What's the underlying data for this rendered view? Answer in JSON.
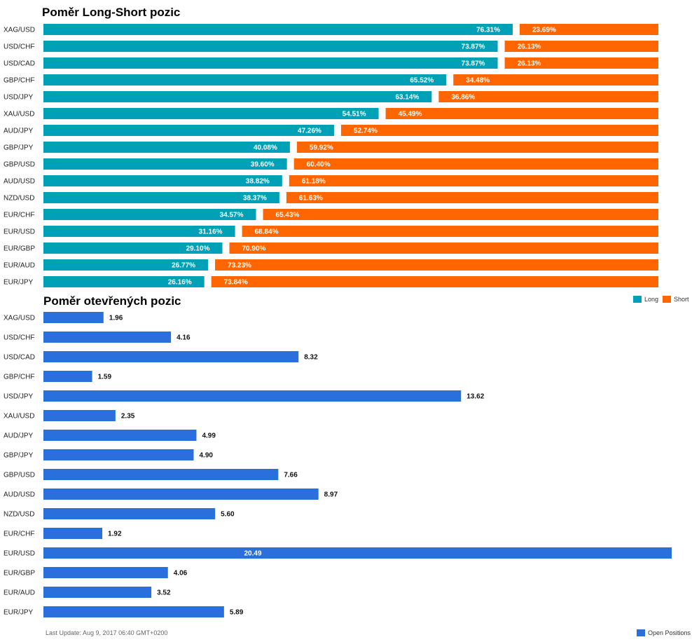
{
  "chart_data": [
    {
      "type": "bar",
      "orientation": "horizontal",
      "stacked": true,
      "title": "Poměr Long-Short pozic",
      "categories": [
        "XAG/USD",
        "USD/CHF",
        "USD/CAD",
        "GBP/CHF",
        "USD/JPY",
        "XAU/USD",
        "AUD/JPY",
        "GBP/JPY",
        "GBP/USD",
        "AUD/USD",
        "NZD/USD",
        "EUR/CHF",
        "EUR/USD",
        "EUR/GBP",
        "EUR/AUD",
        "EUR/JPY"
      ],
      "series": [
        {
          "name": "Long",
          "color": "#00a0b9",
          "values": [
            76.31,
            73.87,
            73.87,
            65.52,
            63.14,
            54.51,
            47.26,
            40.08,
            39.6,
            38.82,
            38.37,
            34.57,
            31.16,
            29.1,
            26.77,
            26.16
          ],
          "labels": [
            "76.31%",
            "73.87%",
            "73.87%",
            "65.52%",
            "63.14%",
            "54.51%",
            "47.26%",
            "40.08%",
            "39.60%",
            "38.82%",
            "38.37%",
            "34.57%",
            "31.16%",
            "29.10%",
            "26.77%",
            "26.16%"
          ]
        },
        {
          "name": "Short",
          "color": "#ff6600",
          "values": [
            23.69,
            26.13,
            26.13,
            34.48,
            36.86,
            45.49,
            52.74,
            59.92,
            60.4,
            61.18,
            61.63,
            65.43,
            68.84,
            70.9,
            73.23,
            73.84
          ],
          "labels": [
            "23.69%",
            "26.13%",
            "26.13%",
            "34.48%",
            "36.86%",
            "45.49%",
            "52.74%",
            "59.92%",
            "60.40%",
            "61.18%",
            "61.63%",
            "65.43%",
            "68.84%",
            "70.90%",
            "73.23%",
            "73.84%"
          ]
        }
      ],
      "legend": "top-right"
    },
    {
      "type": "bar",
      "orientation": "horizontal",
      "title": "Poměr otevřených pozic",
      "categories": [
        "XAG/USD",
        "USD/CHF",
        "USD/CAD",
        "GBP/CHF",
        "USD/JPY",
        "XAU/USD",
        "AUD/JPY",
        "GBP/JPY",
        "GBP/USD",
        "AUD/USD",
        "NZD/USD",
        "EUR/CHF",
        "EUR/USD",
        "EUR/GBP",
        "EUR/AUD",
        "EUR/JPY"
      ],
      "series": [
        {
          "name": "Open Positions",
          "color": "#2a6fdb",
          "values": [
            1.96,
            4.16,
            8.32,
            1.59,
            13.62,
            2.35,
            4.99,
            4.9,
            7.66,
            8.97,
            5.6,
            1.92,
            20.49,
            4.06,
            3.52,
            5.89
          ],
          "labels": [
            "1.96",
            "4.16",
            "8.32",
            "1.59",
            "13.62",
            "2.35",
            "4.99",
            "4.90",
            "7.66",
            "8.97",
            "5.60",
            "1.92",
            "20.49",
            "4.06",
            "3.52",
            "5.89"
          ]
        }
      ],
      "legend": "bottom-right"
    }
  ],
  "footer": "Last Update: Aug 9, 2017 06:40 GMT+0200"
}
